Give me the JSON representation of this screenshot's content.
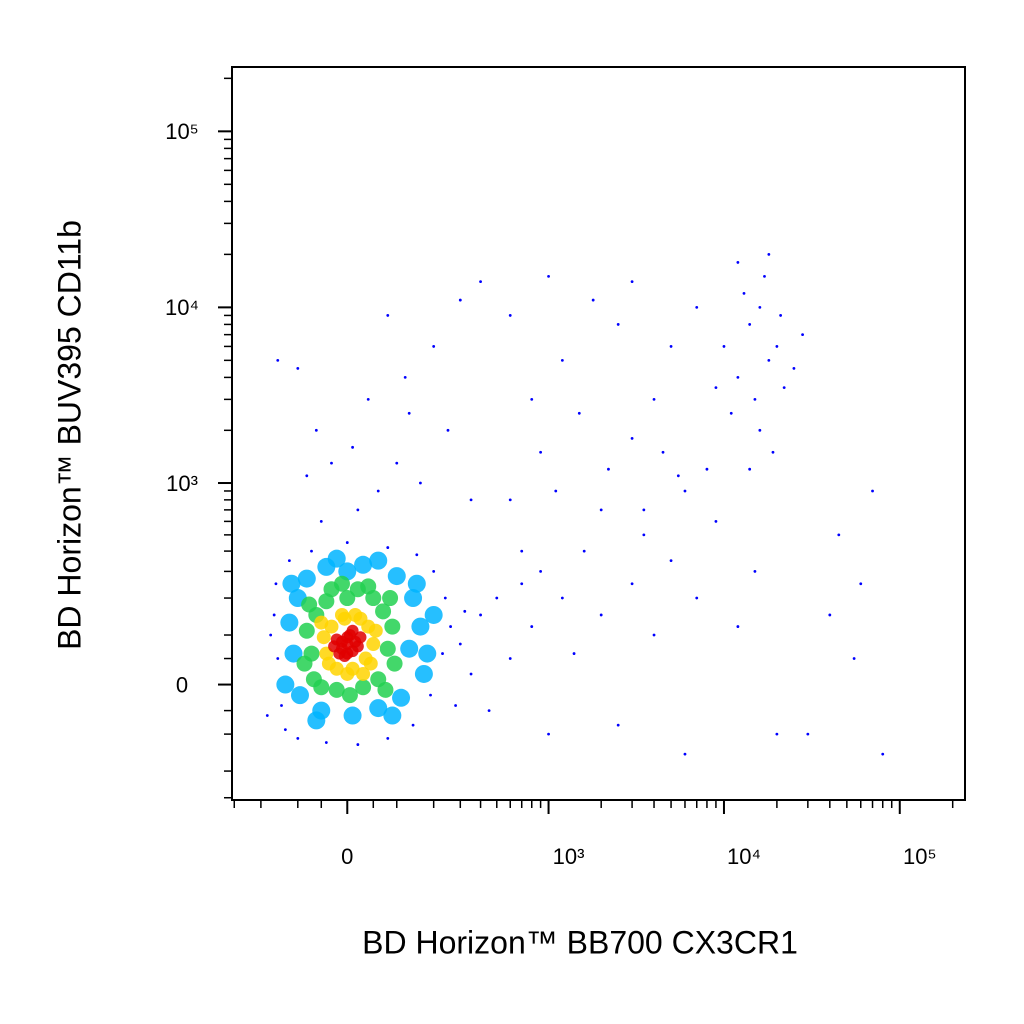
{
  "chart_data": {
    "type": "scatter",
    "x_label": "BD Horizon™ BB700 CX3CR1",
    "y_label": "BD Horizon™ BUV395 CD11b",
    "scale": "asinh",
    "cofactor": 144,
    "xlim": [
      -310,
      235000
    ],
    "ylim": [
      -310,
      232000
    ],
    "xticks": [
      0,
      {
        "value": 1000,
        "label": "10³"
      },
      {
        "value": 10000,
        "label": "10⁴"
      },
      {
        "value": 100000,
        "label": "10⁵"
      }
    ],
    "yticks": [
      0,
      {
        "value": 1000,
        "label": "10³"
      },
      {
        "value": 10000,
        "label": "10⁴"
      },
      {
        "value": 100000,
        "label": "10⁵"
      }
    ],
    "xminor_ticks": [
      -300,
      -200,
      -100,
      -50,
      50,
      100,
      200,
      300,
      400,
      500,
      600,
      700,
      800,
      900,
      2000,
      3000,
      4000,
      5000,
      6000,
      7000,
      8000,
      9000,
      20000,
      30000,
      40000,
      50000,
      60000,
      70000,
      80000,
      90000,
      200000
    ],
    "yminor_ticks": [
      -300,
      -200,
      -100,
      -50,
      50,
      100,
      200,
      300,
      400,
      500,
      600,
      700,
      800,
      900,
      2000,
      3000,
      4000,
      5000,
      6000,
      7000,
      8000,
      9000,
      20000,
      30000,
      40000,
      50000,
      60000,
      70000,
      80000,
      90000,
      200000
    ],
    "series": [
      {
        "color": "#0000ff",
        "x": [
          -150,
          -160,
          -140,
          -130,
          -100,
          -40,
          20,
          80,
          140,
          190,
          230,
          260,
          240,
          200,
          150,
          80,
          0,
          -70,
          -120,
          -155,
          -170,
          -180,
          300,
          320,
          280,
          350,
          -50,
          20,
          60,
          -80,
          100,
          10,
          -60,
          130,
          40,
          -100,
          200,
          80,
          300,
          -150,
          250,
          160,
          350,
          -30,
          120,
          400,
          400,
          500,
          600,
          700,
          450,
          800,
          900,
          1000,
          1200,
          1400,
          1600,
          2000,
          2500,
          3000,
          3500,
          4000,
          5000,
          6000,
          7000,
          9000,
          12000,
          15000,
          20000,
          8000,
          6000,
          4500,
          600,
          900,
          1500,
          2000,
          3000,
          800,
          1200,
          2500,
          4000,
          5000,
          7000,
          3000,
          1800,
          600,
          1000,
          2200,
          3500,
          5500,
          700,
          1100,
          12000,
          15000,
          18000,
          14000,
          20000,
          16000,
          11000,
          22000,
          13000,
          17000,
          25000,
          19000,
          10000,
          16000,
          21000,
          14000,
          28000,
          12000,
          18000,
          9000,
          40000,
          55000,
          70000,
          80000,
          30000,
          45000,
          60000
        ],
        "y": [
          50,
          150,
          -40,
          -90,
          -110,
          -120,
          -125,
          -110,
          -80,
          -20,
          60,
          120,
          200,
          300,
          380,
          420,
          450,
          400,
          350,
          250,
          100,
          -60,
          80,
          160,
          -40,
          20,
          600,
          700,
          900,
          1100,
          1300,
          1600,
          2000,
          2500,
          3000,
          4500,
          6000,
          9000,
          11000,
          5000,
          2000,
          1000,
          800,
          1300,
          4000,
          14000,
          150,
          200,
          50,
          250,
          -50,
          120,
          300,
          -100,
          200,
          60,
          400,
          150,
          -80,
          250,
          500,
          100,
          350,
          -150,
          200,
          600,
          120,
          300,
          -100,
          1200,
          900,
          1500,
          800,
          1500,
          2500,
          700,
          1800,
          3000,
          5000,
          8000,
          3000,
          6000,
          10000,
          14000,
          11000,
          9000,
          15000,
          1200,
          700,
          1100,
          400,
          900,
          4000,
          3000,
          5000,
          8000,
          6000,
          2000,
          2500,
          3500,
          12000,
          15000,
          4500,
          1500,
          6000,
          10000,
          9000,
          1200,
          7000,
          18000,
          20000,
          3500,
          150,
          50,
          900,
          -150,
          -100,
          500,
          250
        ]
      },
      {
        "color": "#00b4ff",
        "x": [
          -110,
          130,
          -100,
          140,
          0,
          -50,
          60,
          -120,
          160,
          -80,
          100,
          -95,
          110,
          30,
          -40,
          -130,
          170,
          10,
          150,
          -115,
          -60,
          90,
          200,
          180,
          60,
          -20
        ],
        "y": [
          60,
          70,
          200,
          200,
          300,
          -50,
          -45,
          130,
          120,
          270,
          280,
          -20,
          -25,
          330,
          320,
          0,
          20,
          -60,
          250,
          250,
          -70,
          -60,
          150,
          60,
          350,
          360
        ]
      },
      {
        "color": "#22d050",
        "x": [
          -70,
          80,
          -60,
          70,
          0,
          -20,
          30,
          -80,
          90,
          -40,
          50,
          -65,
          60,
          20,
          -30,
          -85,
          95,
          5,
          -50,
          75,
          40,
          -75,
          85,
          -10
        ],
        "y": [
          60,
          70,
          150,
          160,
          200,
          -10,
          -5,
          110,
          120,
          190,
          200,
          10,
          10,
          230,
          230,
          40,
          40,
          -20,
          -5,
          -10,
          240,
          180,
          200,
          250
        ]
      },
      {
        "color": "#ffd400",
        "x": [
          -40,
          35,
          -30,
          40,
          -5,
          10,
          -45,
          50,
          25,
          -20,
          45,
          -35,
          15,
          -50,
          55,
          0,
          30,
          -10
        ],
        "y": [
          60,
          50,
          120,
          120,
          140,
          30,
          95,
          80,
          140,
          30,
          40,
          40,
          150,
          130,
          110,
          20,
          20,
          150
        ]
      },
      {
        "color": "#e00000",
        "x": [
          -10,
          0,
          10,
          -20,
          5,
          15,
          -5,
          20,
          -15,
          0,
          10,
          -25,
          25,
          0,
          -10
        ],
        "y": [
          70,
          80,
          65,
          90,
          100,
          85,
          55,
          75,
          60,
          95,
          110,
          75,
          95,
          60,
          85
        ]
      }
    ]
  }
}
